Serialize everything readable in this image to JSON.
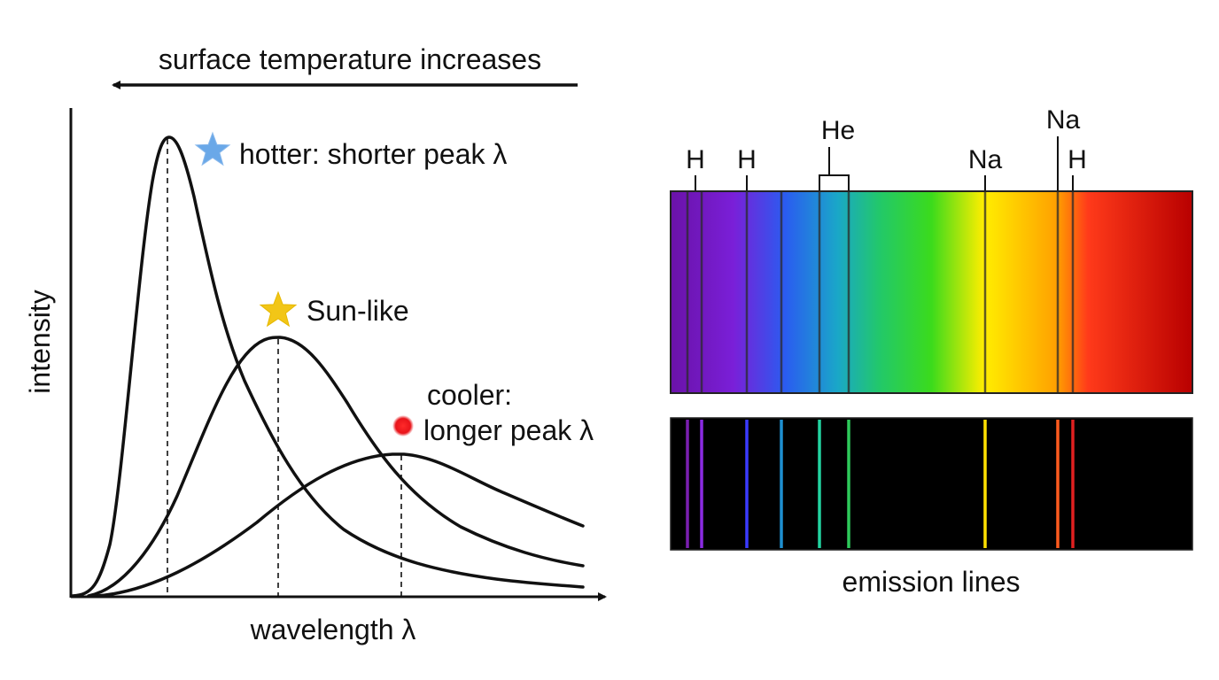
{
  "planck_panel": {
    "top_arrow_label": "surface temperature increases",
    "x_axis_label": "wavelength λ",
    "y_axis_label": "intensity",
    "curve_labels": {
      "hot": "hotter: shorter peak λ",
      "sun": "Sun-like",
      "cool_line1": "cooler:",
      "cool_line2": "longer peak λ"
    },
    "marker_colors": {
      "hot": "#5b9bd5",
      "sun": "#f2c617",
      "cool": "#e8141a"
    },
    "marker_icons": {
      "hot": "blue-star-icon",
      "sun": "yellow-star-icon",
      "cool": "red-dot-icon"
    }
  },
  "spectrum_panel": {
    "caption": "emission lines",
    "line_labels": {
      "h_1": "H",
      "h_2": "H",
      "he": "He",
      "na_1": "Na",
      "na_2": "Na",
      "h_3": "H"
    },
    "emission_line_colors": [
      "#7a1fb0",
      "#8a2be2",
      "#3a3aff",
      "#1e8fd0",
      "#22d3a0",
      "#2ec95a",
      "#ffe000",
      "#ff5a1e",
      "#e02020"
    ],
    "gradient_colors": [
      "#6a12a8",
      "#7a1fd8",
      "#2a5cf0",
      "#1aa7c8",
      "#22c86a",
      "#3bdb1c",
      "#ffee00",
      "#ffa000",
      "#ff3a1a",
      "#b80000"
    ]
  }
}
